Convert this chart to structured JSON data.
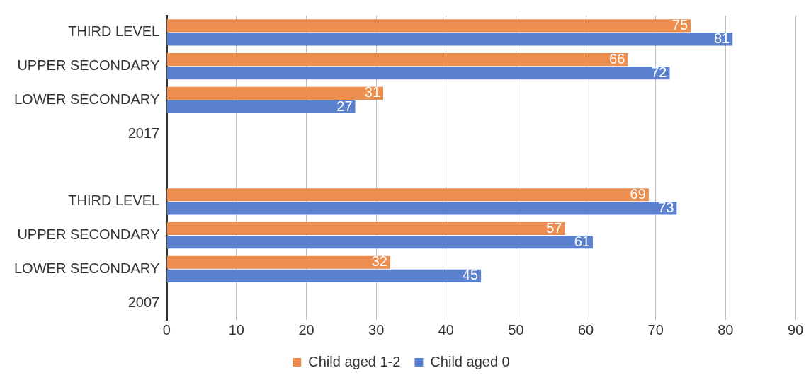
{
  "chart_data": {
    "type": "bar",
    "orientation": "horizontal",
    "categories": [
      "THIRD LEVEL",
      "UPPER SECONDARY",
      "LOWER SECONDARY",
      "2017",
      null,
      "THIRD LEVEL",
      "UPPER SECONDARY",
      "LOWER SECONDARY",
      "2007"
    ],
    "series": [
      {
        "name": "Child aged 1-2",
        "color": "#ed8d4e",
        "values": [
          75,
          66,
          31,
          null,
          null,
          69,
          57,
          32,
          null
        ]
      },
      {
        "name": "Child aged 0",
        "color": "#5b80cd",
        "values": [
          81,
          72,
          27,
          null,
          null,
          73,
          61,
          45,
          null
        ]
      }
    ],
    "xlim": [
      0,
      90
    ],
    "xticks": [
      0,
      10,
      20,
      30,
      40,
      50,
      60,
      70,
      80,
      90
    ],
    "grid": "x",
    "legend": "bottom",
    "data_labels": true
  }
}
